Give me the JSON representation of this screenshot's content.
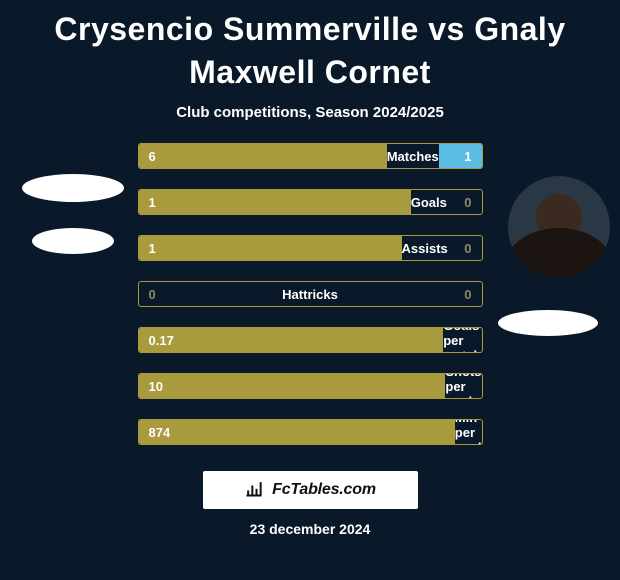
{
  "title": "Crysencio Summerville vs Gnaly Maxwell Cornet",
  "subtitle": "Club competitions, Season 2024/2025",
  "colors": {
    "fill": "#a99a3e",
    "accent": "#5bbce4",
    "empty_text": "#8a8a66"
  },
  "rows": [
    {
      "label": "Matches",
      "left": "6",
      "right": "1",
      "left_pct": 85.7,
      "right_pct": 14.3,
      "right_accent": true
    },
    {
      "label": "Goals",
      "left": "1",
      "right": "0",
      "left_pct": 100,
      "right_pct": 0
    },
    {
      "label": "Assists",
      "left": "1",
      "right": "0",
      "left_pct": 100,
      "right_pct": 0
    },
    {
      "label": "Hattricks",
      "left": "0",
      "right": "0",
      "left_pct": 0,
      "right_pct": 0
    },
    {
      "label": "Goals per match",
      "left": "0.17",
      "right": "",
      "left_pct": 100,
      "right_pct": 0
    },
    {
      "label": "Shots per goal",
      "left": "10",
      "right": "",
      "left_pct": 100,
      "right_pct": 0
    },
    {
      "label": "Min per goal",
      "left": "874",
      "right": "",
      "left_pct": 100,
      "right_pct": 0
    }
  ],
  "brand": "FcTables.com",
  "date": "23 december 2024"
}
